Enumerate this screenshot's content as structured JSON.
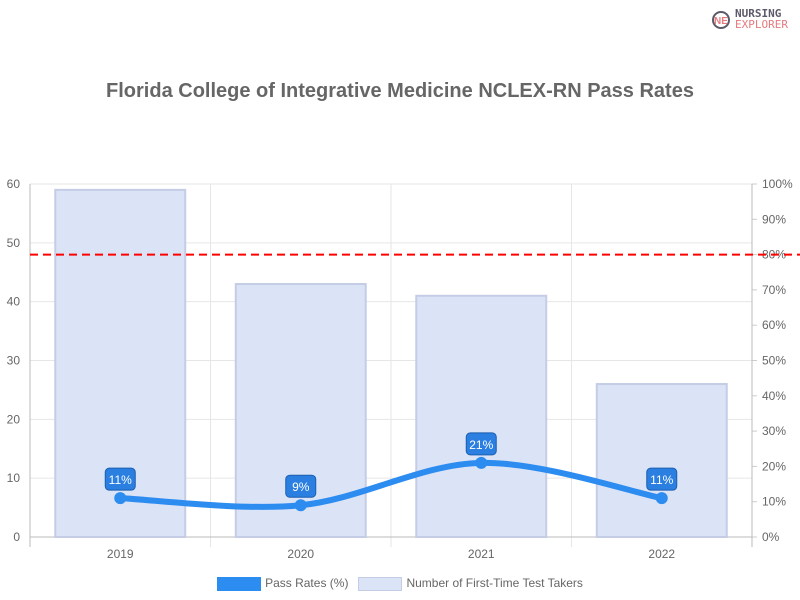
{
  "logo": {
    "line1": "NURSING",
    "line2": "EXPLORER"
  },
  "chart_data": {
    "type": "bar",
    "title": "Florida College of Integrative Medicine NCLEX-RN Pass Rates",
    "categories": [
      "2019",
      "2020",
      "2021",
      "2022"
    ],
    "series": [
      {
        "name": "Pass Rates (%)",
        "type": "line",
        "axis": "right",
        "values": [
          11,
          9,
          21,
          11
        ],
        "labels": [
          "11%",
          "9%",
          "21%",
          "11%"
        ],
        "color": "#2d8cf0"
      },
      {
        "name": "Number of First-Time Test Takers",
        "type": "bar",
        "axis": "left",
        "values": [
          59,
          43,
          41,
          26
        ],
        "color": "#dbe3f7"
      }
    ],
    "left_axis": {
      "ylim": [
        0,
        60
      ],
      "ticks": [
        "0",
        "10",
        "20",
        "30",
        "40",
        "50",
        "60"
      ]
    },
    "right_axis": {
      "ylim": [
        0,
        100
      ],
      "ticks": [
        "0%",
        "10%",
        "20%",
        "30%",
        "40%",
        "50%",
        "60%",
        "70%",
        "80%",
        "90%",
        "100%"
      ]
    },
    "reference_line": {
      "value": 80,
      "axis": "right",
      "color": "#ff0000",
      "style": "dashed"
    },
    "grid": true,
    "legend": "bottom"
  }
}
